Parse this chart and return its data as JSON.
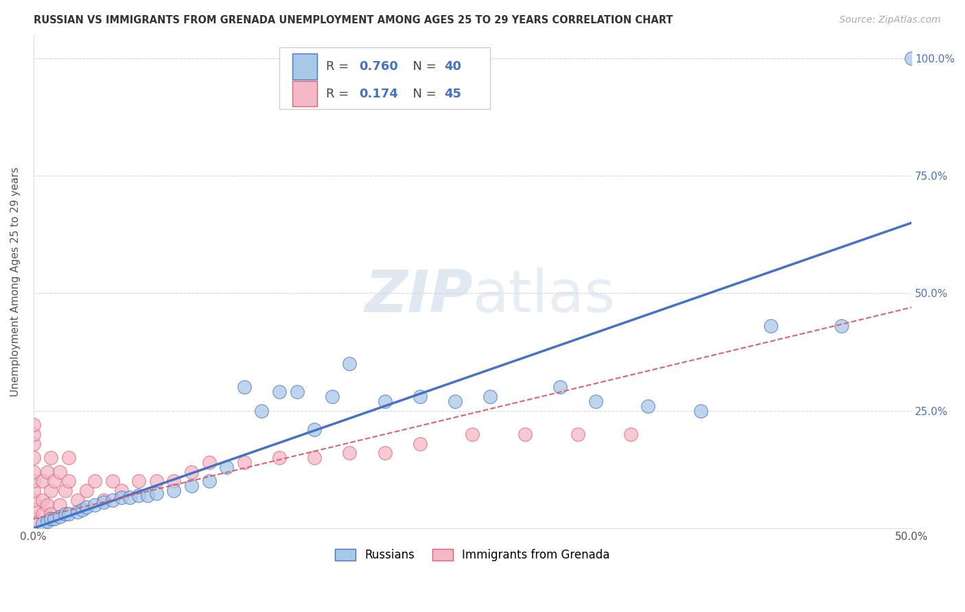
{
  "title": "RUSSIAN VS IMMIGRANTS FROM GRENADA UNEMPLOYMENT AMONG AGES 25 TO 29 YEARS CORRELATION CHART",
  "source": "Source: ZipAtlas.com",
  "ylabel": "Unemployment Among Ages 25 to 29 years",
  "xlim": [
    0.0,
    0.5
  ],
  "ylim": [
    0.0,
    1.05
  ],
  "xticks": [
    0.0,
    0.1,
    0.2,
    0.3,
    0.4,
    0.5
  ],
  "xticklabels": [
    "0.0%",
    "",
    "",
    "",
    "",
    "50.0%"
  ],
  "yticks": [
    0.0,
    0.25,
    0.5,
    0.75,
    1.0
  ],
  "yticklabels_right": [
    "",
    "25.0%",
    "50.0%",
    "75.0%",
    "100.0%"
  ],
  "russian_R": 0.76,
  "russian_N": 40,
  "grenada_R": 0.174,
  "grenada_N": 45,
  "russian_color": "#a8c8e8",
  "russian_line_color": "#4472c4",
  "grenada_color": "#f4b8c8",
  "grenada_line_color": "#e06070",
  "watermark_color": "#d0dce8",
  "background_color": "#ffffff",
  "russian_x": [
    0.005,
    0.008,
    0.01,
    0.012,
    0.015,
    0.018,
    0.02,
    0.025,
    0.028,
    0.03,
    0.035,
    0.04,
    0.045,
    0.05,
    0.055,
    0.06,
    0.065,
    0.07,
    0.08,
    0.09,
    0.1,
    0.11,
    0.12,
    0.13,
    0.14,
    0.15,
    0.16,
    0.17,
    0.18,
    0.2,
    0.22,
    0.24,
    0.26,
    0.3,
    0.32,
    0.35,
    0.38,
    0.42,
    0.46,
    0.5
  ],
  "russian_y": [
    0.01,
    0.015,
    0.02,
    0.02,
    0.025,
    0.03,
    0.03,
    0.035,
    0.04,
    0.045,
    0.05,
    0.055,
    0.06,
    0.065,
    0.065,
    0.07,
    0.07,
    0.075,
    0.08,
    0.09,
    0.1,
    0.13,
    0.3,
    0.25,
    0.29,
    0.29,
    0.21,
    0.28,
    0.35,
    0.27,
    0.28,
    0.27,
    0.28,
    0.3,
    0.27,
    0.26,
    0.25,
    0.43,
    0.43,
    1.0
  ],
  "grenada_x": [
    0.0,
    0.0,
    0.0,
    0.0,
    0.0,
    0.0,
    0.0,
    0.0,
    0.0,
    0.0,
    0.005,
    0.005,
    0.005,
    0.008,
    0.008,
    0.01,
    0.01,
    0.01,
    0.012,
    0.015,
    0.015,
    0.018,
    0.02,
    0.02,
    0.025,
    0.03,
    0.035,
    0.04,
    0.045,
    0.05,
    0.06,
    0.07,
    0.08,
    0.09,
    0.1,
    0.12,
    0.14,
    0.16,
    0.18,
    0.2,
    0.22,
    0.25,
    0.28,
    0.31,
    0.34
  ],
  "grenada_y": [
    0.02,
    0.04,
    0.06,
    0.08,
    0.1,
    0.12,
    0.15,
    0.18,
    0.2,
    0.22,
    0.03,
    0.06,
    0.1,
    0.05,
    0.12,
    0.03,
    0.08,
    0.15,
    0.1,
    0.05,
    0.12,
    0.08,
    0.1,
    0.15,
    0.06,
    0.08,
    0.1,
    0.06,
    0.1,
    0.08,
    0.1,
    0.1,
    0.1,
    0.12,
    0.14,
    0.14,
    0.15,
    0.15,
    0.16,
    0.16,
    0.18,
    0.2,
    0.2,
    0.2,
    0.2
  ]
}
